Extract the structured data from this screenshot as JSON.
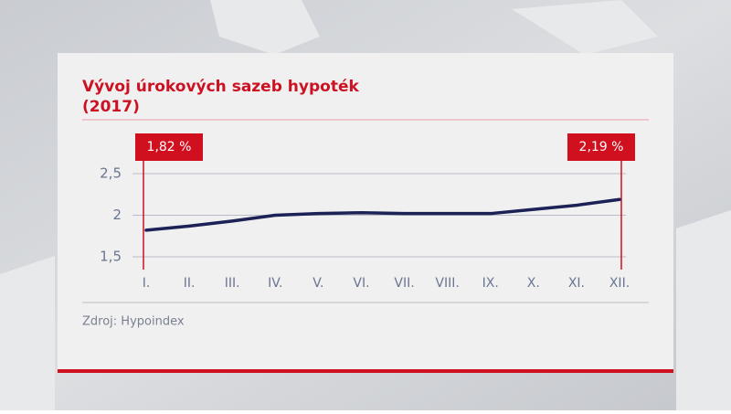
{
  "chart_data": {
    "type": "line",
    "title": "Vývoj úrokových sazeb hypoték",
    "subtitle": "(2017)",
    "source": "Zdroj: Hypoindex",
    "categories": [
      "I.",
      "II.",
      "III.",
      "IV.",
      "V.",
      "VI.",
      "VII.",
      "VIII.",
      "IX.",
      "X.",
      "XI.",
      "XII."
    ],
    "series": [
      {
        "color": "#1c2255",
        "values": [
          1.82,
          1.87,
          1.93,
          2.0,
          2.02,
          2.03,
          2.02,
          2.02,
          2.02,
          2.07,
          2.12,
          2.19
        ],
        "value_labels": [
          "1,82 %",
          null,
          null,
          null,
          null,
          null,
          null,
          null,
          null,
          null,
          null,
          "2,19 %"
        ]
      }
    ],
    "ylim": [
      1.5,
      2.5
    ],
    "yticks": [
      {
        "value": 1.5,
        "label": "1,5"
      },
      2,
      {
        "value": 2.5,
        "label": "2,5"
      }
    ],
    "grid": true
  }
}
